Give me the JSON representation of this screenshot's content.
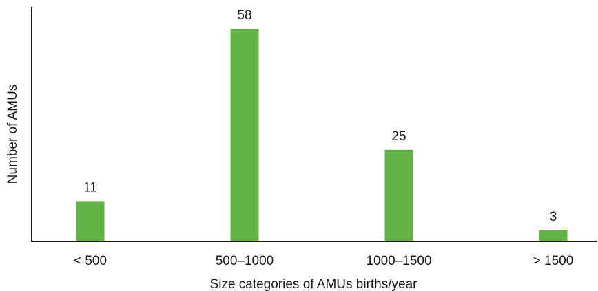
{
  "chart_data": {
    "type": "bar",
    "title": "",
    "xlabel": "Size categories of AMUs births/year",
    "ylabel": "Number of AMUs",
    "categories": [
      "< 500",
      "500–1000",
      "1000–1500",
      "> 1500"
    ],
    "values": [
      11,
      58,
      25,
      3
    ],
    "data_labels": [
      "11",
      "58",
      "25",
      "3"
    ],
    "ylim": [
      0,
      58
    ],
    "bar_color": "#63b446",
    "axis_color": "#1a1a1a",
    "grid": false,
    "legend": "none",
    "y_ticks_shown": false
  }
}
